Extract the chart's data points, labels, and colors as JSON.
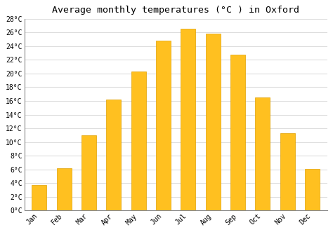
{
  "title": "Average monthly temperatures (°C ) in Oxford",
  "months": [
    "Jan",
    "Feb",
    "Mar",
    "Apr",
    "May",
    "Jun",
    "Jul",
    "Aug",
    "Sep",
    "Oct",
    "Nov",
    "Dec"
  ],
  "values": [
    3.7,
    6.2,
    11.0,
    16.2,
    20.3,
    24.8,
    26.5,
    25.8,
    22.7,
    16.5,
    11.3,
    6.1
  ],
  "bar_color": "#FFC020",
  "bar_edge_color": "#E0A000",
  "background_color": "#FFFFFF",
  "plot_bg_color": "#FFFFFF",
  "grid_color": "#DDDDDD",
  "ylim": [
    0,
    28
  ],
  "ytick_step": 2,
  "title_fontsize": 9.5,
  "tick_fontsize": 7.0,
  "font_family": "monospace",
  "bar_width": 0.6
}
